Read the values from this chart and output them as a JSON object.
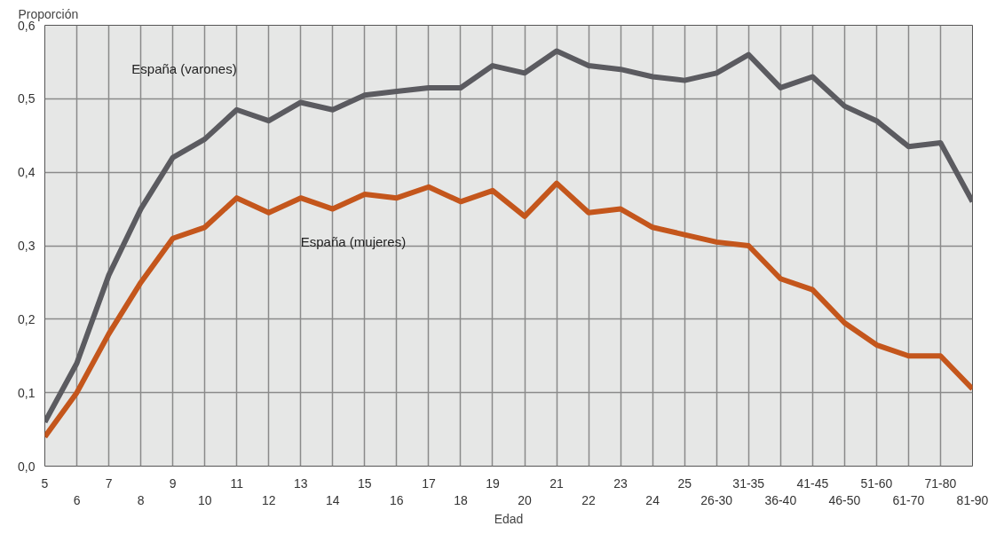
{
  "chart_data": {
    "type": "line",
    "xlabel": "Edad",
    "ylabel": "Proporción",
    "categories": [
      "5",
      "6",
      "7",
      "8",
      "9",
      "10",
      "11",
      "12",
      "13",
      "14",
      "15",
      "16",
      "17",
      "18",
      "19",
      "20",
      "21",
      "22",
      "23",
      "24",
      "25",
      "26-30",
      "31-35",
      "36-40",
      "41-45",
      "46-50",
      "51-60",
      "61-70",
      "71-80",
      "81-90"
    ],
    "series": [
      {
        "name": "España (varones)",
        "color": "#5b5b60",
        "values": [
          0.06,
          0.14,
          0.26,
          0.35,
          0.42,
          0.445,
          0.485,
          0.47,
          0.495,
          0.485,
          0.505,
          0.51,
          0.515,
          0.515,
          0.545,
          0.535,
          0.565,
          0.545,
          0.54,
          0.53,
          0.525,
          0.535,
          0.56,
          0.515,
          0.53,
          0.49,
          0.47,
          0.435,
          0.44,
          0.36
        ]
      },
      {
        "name": "España (mujeres)",
        "color": "#c4561c",
        "values": [
          0.04,
          0.1,
          0.18,
          0.25,
          0.31,
          0.325,
          0.365,
          0.345,
          0.365,
          0.35,
          0.37,
          0.365,
          0.38,
          0.36,
          0.375,
          0.34,
          0.385,
          0.345,
          0.35,
          0.325,
          0.315,
          0.305,
          0.3,
          0.255,
          0.24,
          0.195,
          0.165,
          0.15,
          0.15,
          0.105
        ]
      }
    ],
    "ylim": [
      0,
      0.6
    ],
    "yticks": [
      {
        "value": 0,
        "label": "0,0"
      },
      {
        "value": 0.1,
        "label": "0,1"
      },
      {
        "value": 0.2,
        "label": "0,2"
      },
      {
        "value": 0.3,
        "label": "0,3"
      },
      {
        "value": 0.4,
        "label": "0,4"
      },
      {
        "value": 0.5,
        "label": "0,5"
      },
      {
        "value": 0.6,
        "label": "0,6"
      }
    ],
    "grid": true,
    "legend": false,
    "marker": "none",
    "line_style": "solid"
  }
}
